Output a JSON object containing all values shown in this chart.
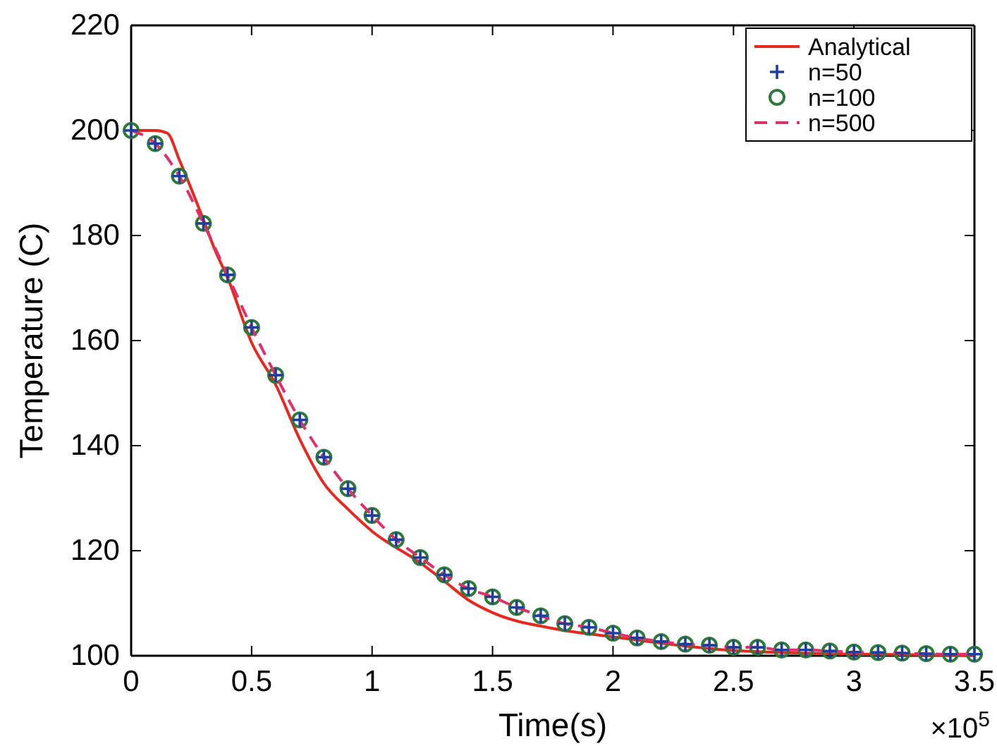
{
  "chart_data": {
    "type": "line",
    "xlabel": "Time(s)",
    "ylabel": "Temperature (C)",
    "xlim": [
      0,
      3.5
    ],
    "xticks": [
      0,
      0.5,
      1,
      1.5,
      2,
      2.5,
      3,
      3.5
    ],
    "ylim": [
      100,
      220
    ],
    "yticks": [
      100,
      120,
      140,
      160,
      180,
      200,
      220
    ],
    "grid": false,
    "legend": "top right",
    "annotations": [
      "×10$^{5}$"
    ],
    "series": [
      {
        "name": "Analytical",
        "color": "#e8281e",
        "line_style": "solid",
        "x": [
          0,
          0.1,
          0.15,
          0.2,
          0.3,
          0.35,
          0.4,
          0.5,
          0.6,
          0.7,
          0.8,
          0.9,
          1,
          1.2,
          1.3,
          1.4,
          1.5,
          1.75,
          2,
          2.5,
          3,
          3.5
        ],
        "values": [
          200,
          200,
          199.5,
          194.4,
          183,
          177,
          172,
          159.6,
          151.6,
          141.2,
          132.8,
          127.9,
          123.7,
          117.7,
          114.2,
          110.6,
          108.2,
          105.2,
          103.6,
          101,
          100.3,
          100.1
        ]
      },
      {
        "name": "n=50",
        "type": "scatter",
        "color": "#1f3fa0",
        "marker": "cross",
        "x": [
          0,
          0.1,
          0.2,
          0.3,
          0.4,
          0.5,
          0.6,
          0.7,
          0.8,
          0.9,
          1,
          1.1,
          1.2,
          1.3,
          1.4,
          1.5,
          1.6,
          1.7,
          1.8,
          1.9,
          2,
          2.1,
          2.2,
          2.3,
          2.4,
          2.5,
          2.6,
          2.7,
          2.8,
          2.9,
          3,
          3.1,
          3.2,
          3.3,
          3.4,
          3.5
        ],
        "values": [
          200,
          197.5,
          191.3,
          182.3,
          172.5,
          162.5,
          153.4,
          144.9,
          137.8,
          131.8,
          126.7,
          122.1,
          118.7,
          115.4,
          112.8,
          111.2,
          109.2,
          107.6,
          106.1,
          105.4,
          104.3,
          103.4,
          102.7,
          102.2,
          102,
          101.6,
          101.6,
          101.1,
          101.1,
          100.9,
          100.7,
          100.6,
          100.5,
          100.4,
          100.3,
          100.3
        ]
      },
      {
        "name": "n=100",
        "type": "scatter",
        "color": "#2f7a3a",
        "marker": "circle",
        "x": [
          0,
          0.1,
          0.2,
          0.3,
          0.4,
          0.5,
          0.6,
          0.7,
          0.8,
          0.9,
          1,
          1.1,
          1.2,
          1.3,
          1.4,
          1.5,
          1.6,
          1.7,
          1.8,
          1.9,
          2,
          2.1,
          2.2,
          2.3,
          2.4,
          2.5,
          2.6,
          2.7,
          2.8,
          2.9,
          3,
          3.1,
          3.2,
          3.3,
          3.4,
          3.5
        ],
        "values": [
          200,
          197.5,
          191.3,
          182.3,
          172.5,
          162.5,
          153.4,
          144.9,
          137.8,
          131.8,
          126.7,
          122.1,
          118.7,
          115.4,
          112.8,
          111.2,
          109.2,
          107.6,
          106.1,
          105.4,
          104.3,
          103.4,
          102.7,
          102.2,
          102,
          101.6,
          101.6,
          101.1,
          101.1,
          100.9,
          100.7,
          100.6,
          100.5,
          100.4,
          100.3,
          100.3
        ]
      },
      {
        "name": "n=500",
        "type": "line",
        "color": "#e0306a",
        "line_style": "dashed",
        "x": [
          0,
          0.1,
          0.2,
          0.3,
          0.4,
          0.5,
          0.6,
          0.7,
          0.8,
          0.9,
          1,
          1.1,
          1.2,
          1.3,
          1.4,
          1.5,
          1.6,
          1.7,
          1.8,
          1.9,
          2,
          2.1,
          2.2,
          2.3,
          2.4,
          2.5,
          2.6,
          2.7,
          2.8,
          2.9,
          3,
          3.1,
          3.2,
          3.3,
          3.4,
          3.5
        ],
        "values": [
          200,
          197.5,
          191.3,
          182.3,
          172.5,
          162.5,
          153.4,
          144.9,
          137.8,
          131.8,
          126.7,
          122.1,
          118.7,
          115.4,
          112.8,
          111.2,
          109.2,
          107.6,
          106.1,
          105.4,
          104.3,
          103.4,
          102.7,
          102.2,
          102,
          101.6,
          101.6,
          101.1,
          101.1,
          100.9,
          100.7,
          100.6,
          100.5,
          100.4,
          100.3,
          100.3
        ]
      }
    ]
  }
}
